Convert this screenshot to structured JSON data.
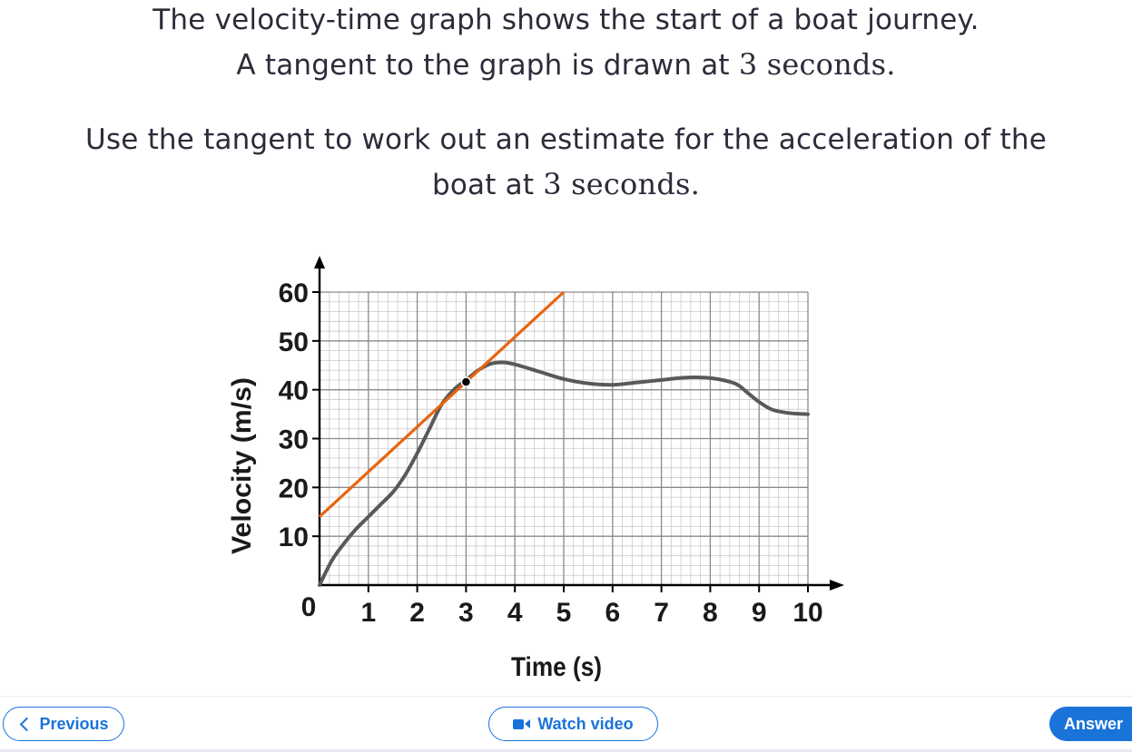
{
  "question": {
    "line1": "The velocity-time graph shows the start of a boat journey.",
    "line2_pre": "A tangent to the graph is drawn at ",
    "line2_num": "3",
    "line2_post": " seconds.",
    "line3": "Use the tangent to work out an estimate for the acceleration of the",
    "line4_pre": "boat at ",
    "line4_num": "3",
    "line4_post": " seconds."
  },
  "chart_data": {
    "type": "line",
    "xlabel": "Time (s)",
    "ylabel": "Velocity (m/s)",
    "xlim": [
      0,
      10
    ],
    "ylim": [
      0,
      60
    ],
    "x_ticks": [
      "0",
      "1",
      "2",
      "3",
      "4",
      "5",
      "6",
      "7",
      "8",
      "9",
      "10"
    ],
    "y_ticks": [
      "10",
      "20",
      "30",
      "40",
      "50",
      "60"
    ],
    "grid": true,
    "series": [
      {
        "color": "#595959",
        "x": [
          0,
          0.25,
          0.5,
          0.75,
          1,
          1.25,
          1.5,
          1.75,
          2,
          2.25,
          2.5,
          2.75,
          3,
          3.25,
          3.5,
          3.75,
          4,
          4.5,
          5,
          5.5,
          6,
          6.5,
          7,
          7.5,
          8,
          8.5,
          8.75,
          9,
          9.25,
          9.5,
          9.75,
          10
        ],
        "y": [
          0,
          5,
          8.5,
          11.5,
          14,
          16.5,
          19,
          22.5,
          27,
          32,
          37,
          40,
          42,
          44,
          45.3,
          45.6,
          45.2,
          43.7,
          42.2,
          41.3,
          41,
          41.5,
          42,
          42.5,
          42.4,
          41.3,
          39.5,
          37.5,
          36,
          35.4,
          35.1,
          35
        ]
      }
    ],
    "tangent": {
      "color": "#e8640f",
      "x": [
        0,
        5
      ],
      "y": [
        14,
        60
      ]
    },
    "point": {
      "x": 3,
      "y": 41.6
    }
  },
  "footer": {
    "previous": "Previous",
    "watch_video": "Watch video",
    "answer": "Answer"
  }
}
